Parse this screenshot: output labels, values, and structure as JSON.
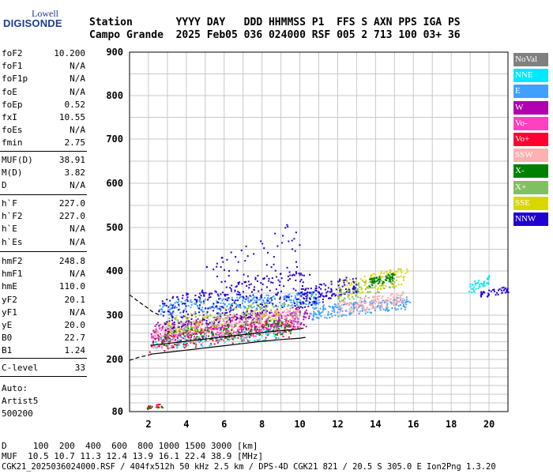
{
  "logo": {
    "top": "Lowell",
    "bottom": "DIGISONDE"
  },
  "header": {
    "line1": "Station       YYYY DAY   DDD HHMMSS P1  FFS S AXN PPS IGA PS",
    "line2": "Campo Grande  2025 Feb05 036 024000 RSF 005 2 713 100 03+ 36"
  },
  "params_a": [
    {
      "k": "foF2",
      "v": "10.200"
    },
    {
      "k": "foF1",
      "v": "N/A"
    },
    {
      "k": "foF1p",
      "v": "N/A"
    },
    {
      "k": "foE",
      "v": "N/A"
    },
    {
      "k": "foEp",
      "v": "0.52"
    },
    {
      "k": "fxI",
      "v": "10.55"
    },
    {
      "k": "foEs",
      "v": "N/A"
    },
    {
      "k": "fmin",
      "v": "2.75"
    }
  ],
  "params_b": [
    {
      "k": "MUF(D)",
      "v": "38.91"
    },
    {
      "k": "M(D)",
      "v": "3.82"
    },
    {
      "k": "D",
      "v": "N/A"
    }
  ],
  "params_c": [
    {
      "k": "h`F",
      "v": "227.0"
    },
    {
      "k": "h`F2",
      "v": "227.0"
    },
    {
      "k": "h`E",
      "v": "N/A"
    },
    {
      "k": "h`Es",
      "v": "N/A"
    }
  ],
  "params_d": [
    {
      "k": "hmF2",
      "v": "248.8"
    },
    {
      "k": "hmF1",
      "v": "N/A"
    },
    {
      "k": "hmE",
      "v": "110.0"
    },
    {
      "k": "yF2",
      "v": "20.1"
    },
    {
      "k": "yF1",
      "v": "N/A"
    },
    {
      "k": "yE",
      "v": "20.0"
    },
    {
      "k": "B0",
      "v": "22.7"
    },
    {
      "k": "B1",
      "v": "1.24"
    }
  ],
  "params_e": [
    {
      "k": "C-level",
      "v": "33"
    }
  ],
  "auto": {
    "line1": "Auto:",
    "line2": "Artist5",
    "line3": "500200"
  },
  "legend": [
    {
      "label": "NoVal",
      "color": "#808080"
    },
    {
      "label": "NNE",
      "color": "#00e8ff"
    },
    {
      "label": "E",
      "color": "#40a0ff"
    },
    {
      "label": "W",
      "color": "#b000b0"
    },
    {
      "label": "Vo-",
      "color": "#ff40c0"
    },
    {
      "label": "Vo+",
      "color": "#ff0030"
    },
    {
      "label": "SSW",
      "color": "#ffb0b0"
    },
    {
      "label": "X-",
      "color": "#008000"
    },
    {
      "label": "X+",
      "color": "#80c060"
    },
    {
      "label": "SSE",
      "color": "#d8d800"
    },
    {
      "label": "NNW",
      "color": "#2000d0"
    }
  ],
  "footer": {
    "line1": "D     100  200  400  600  800 1000 1500 3000 [km]",
    "line2": "MUF  10.5 10.7 11.3 12.4 13.9 16.1 22.4 38.9 [MHz]",
    "line3": "CGK21_2025036024000.RSF / 404fx512h 50 kHz 2.5 km / DPS-4D CGK21 821 / 20.5 S 305.0 E Ion2Png 1.3.20"
  },
  "chart_data": {
    "type": "scatter",
    "xlim": [
      1,
      21
    ],
    "ylim": [
      80,
      900
    ],
    "x_ticks": [
      2,
      4,
      6,
      8,
      10,
      12,
      14,
      16,
      18,
      20
    ],
    "y_ticks": [
      80,
      200,
      300,
      400,
      500,
      600,
      700,
      800,
      900
    ],
    "grid": true,
    "xlabel": "",
    "ylabel": "",
    "clusters": [
      {
        "series": "W",
        "x": [
          2.1,
          10.5
        ],
        "y": [
          250,
          330
        ],
        "n": 400
      },
      {
        "series": "Vo-",
        "x": [
          2.1,
          10.0
        ],
        "y": [
          240,
          320
        ],
        "n": 300
      },
      {
        "series": "Vo+",
        "x": [
          2.0,
          9.5
        ],
        "y": [
          230,
          300
        ],
        "n": 120
      },
      {
        "series": "SSW",
        "x": [
          2.2,
          10.0
        ],
        "y": [
          240,
          330
        ],
        "n": 300
      },
      {
        "series": "E",
        "x": [
          2.5,
          11.0
        ],
        "y": [
          310,
          360
        ],
        "n": 300
      },
      {
        "series": "NNW",
        "x": [
          2.5,
          10.5
        ],
        "y": [
          280,
          420
        ],
        "n": 300
      },
      {
        "series": "X-",
        "x": [
          2.5,
          9.5
        ],
        "y": [
          240,
          300
        ],
        "n": 150
      },
      {
        "series": "X+",
        "x": [
          3.0,
          10.0
        ],
        "y": [
          270,
          340
        ],
        "n": 120
      },
      {
        "series": "SSE",
        "x": [
          3.0,
          9.0
        ],
        "y": [
          270,
          340
        ],
        "n": 80
      },
      {
        "series": "NNE",
        "x": [
          2.3,
          9.0
        ],
        "y": [
          230,
          280
        ],
        "n": 80
      },
      {
        "series": "E",
        "x": [
          10.5,
          15.8
        ],
        "y": [
          300,
          350
        ],
        "n": 220
      },
      {
        "series": "SSW",
        "x": [
          12.0,
          15.5
        ],
        "y": [
          310,
          360
        ],
        "n": 150
      },
      {
        "series": "SSE",
        "x": [
          12.0,
          15.7
        ],
        "y": [
          350,
          420
        ],
        "n": 120
      },
      {
        "series": "NNW",
        "x": [
          10.0,
          13.0
        ],
        "y": [
          330,
          400
        ],
        "n": 120
      },
      {
        "series": "X+",
        "x": [
          12.0,
          15.0
        ],
        "y": [
          340,
          400
        ],
        "n": 80
      },
      {
        "series": "X-",
        "x": [
          13.5,
          15.0
        ],
        "y": [
          370,
          400
        ],
        "n": 60
      },
      {
        "series": "NNE",
        "x": [
          18.8,
          20.0
        ],
        "y": [
          355,
          395
        ],
        "n": 40
      },
      {
        "series": "NNW",
        "x": [
          19.5,
          21.0
        ],
        "y": [
          345,
          370
        ],
        "n": 40
      },
      {
        "series": "Vo+",
        "x": [
          1.9,
          2.7
        ],
        "y": [
          90,
          100
        ],
        "n": 15
      },
      {
        "series": "X-",
        "x": [
          1.9,
          2.8
        ],
        "y": [
          88,
          98
        ],
        "n": 10
      },
      {
        "series": "NNW",
        "x": [
          5.0,
          10.0
        ],
        "y": [
          330,
          540
        ],
        "n": 80
      }
    ],
    "trace_lower": {
      "x": [
        2.1,
        3.0,
        4.0,
        5.0,
        6.0,
        7.0,
        8.0,
        9.0,
        10.0,
        10.3
      ],
      "y": [
        212,
        216,
        221,
        226,
        231,
        236,
        241,
        245,
        248,
        250
      ]
    },
    "trace_upper": {
      "x": [
        2.1,
        3.0,
        4.0,
        5.0,
        6.0,
        7.0,
        8.0,
        9.0,
        10.0,
        10.2
      ],
      "y": [
        232,
        236,
        241,
        246,
        251,
        256,
        261,
        265,
        269,
        271
      ]
    },
    "trace_low_left": {
      "x": [
        1.0,
        1.5,
        2.0,
        2.2
      ],
      "y": [
        198,
        205,
        210,
        212
      ]
    },
    "trace_high_left": {
      "x": [
        1.0,
        1.5,
        2.0,
        2.2,
        2.6
      ],
      "y": [
        346,
        330,
        315,
        308,
        300
      ]
    }
  }
}
